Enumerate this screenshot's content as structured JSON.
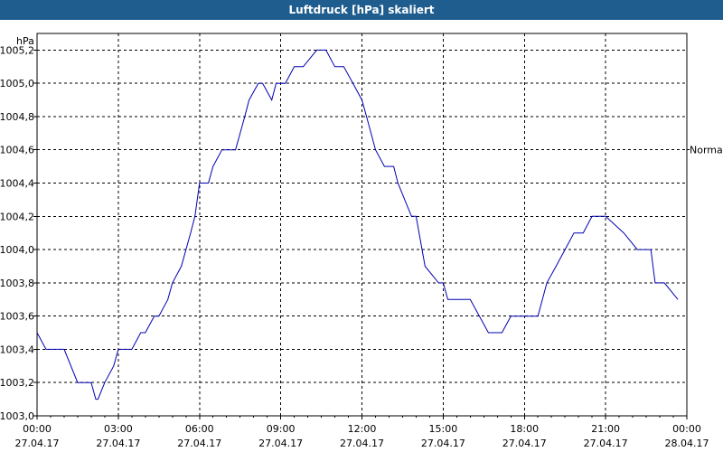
{
  "window": {
    "title": "Luftdruck [hPa] skaliert"
  },
  "chart_data": {
    "type": "line",
    "title": "Luftdruck [hPa] skaliert",
    "ylabel": "hPa",
    "ylim": [
      1003.0,
      1005.3
    ],
    "yticks": [
      "1003,0",
      "1003,2",
      "1003,4",
      "1003,6",
      "1003,8",
      "1004,0",
      "1004,2",
      "1004,4",
      "1004,6",
      "1004,8",
      "1005,0",
      "1005,2"
    ],
    "ytick_values": [
      1003.0,
      1003.2,
      1003.4,
      1003.6,
      1003.8,
      1004.0,
      1004.2,
      1004.4,
      1004.6,
      1004.8,
      1005.0,
      1005.2
    ],
    "xticks": [
      {
        "time": "00:00",
        "date": "27.04.17"
      },
      {
        "time": "03:00",
        "date": "27.04.17"
      },
      {
        "time": "06:00",
        "date": "27.04.17"
      },
      {
        "time": "09:00",
        "date": "27.04.17"
      },
      {
        "time": "12:00",
        "date": "27.04.17"
      },
      {
        "time": "15:00",
        "date": "27.04.17"
      },
      {
        "time": "18:00",
        "date": "27.04.17"
      },
      {
        "time": "21:00",
        "date": "27.04.17"
      },
      {
        "time": "00:00",
        "date": "28.04.17"
      }
    ],
    "xlim_hours": [
      0,
      24
    ],
    "reference_line": {
      "label": "Normal",
      "value": 1004.6
    },
    "grid": true,
    "series": [
      {
        "color": "#0000b0",
        "hours": [
          0,
          0.33,
          0.5,
          1,
          1.5,
          2,
          2.17,
          2.25,
          2.5,
          2.83,
          3,
          3.5,
          3.83,
          4,
          4.33,
          4.5,
          4.83,
          5,
          5.33,
          5.5,
          5.67,
          5.83,
          6,
          6.33,
          6.5,
          6.83,
          7.33,
          7.67,
          7.83,
          8.17,
          8.33,
          8.67,
          8.83,
          9.17,
          9.5,
          9.83,
          10.33,
          10.67,
          11,
          11.33,
          11.67,
          12,
          12.17,
          12.5,
          12.83,
          13.17,
          13.33,
          13.83,
          14,
          14.33,
          14.83,
          15,
          15.17,
          15.67,
          16,
          16.67,
          17.17,
          17.5,
          17.83,
          18.5,
          18.83,
          19.17,
          19.5,
          19.83,
          20.17,
          20.5,
          20.67,
          21,
          21.67,
          22.17,
          22.67,
          22.83,
          23.17,
          23.67
        ],
        "values": [
          1003.5,
          1003.4,
          1003.4,
          1003.4,
          1003.2,
          1003.2,
          1003.1,
          1003.1,
          1003.2,
          1003.3,
          1003.4,
          1003.4,
          1003.5,
          1003.5,
          1003.6,
          1003.6,
          1003.7,
          1003.8,
          1003.9,
          1004.0,
          1004.1,
          1004.2,
          1004.4,
          1004.4,
          1004.5,
          1004.6,
          1004.6,
          1004.8,
          1004.9,
          1005.0,
          1005.0,
          1004.9,
          1005.0,
          1005.0,
          1005.1,
          1005.1,
          1005.2,
          1005.2,
          1005.1,
          1005.1,
          1005.0,
          1004.9,
          1004.8,
          1004.6,
          1004.5,
          1004.5,
          1004.4,
          1004.2,
          1004.2,
          1003.9,
          1003.8,
          1003.8,
          1003.7,
          1003.7,
          1003.7,
          1003.5,
          1003.5,
          1003.6,
          1003.6,
          1003.6,
          1003.8,
          1003.9,
          1004.0,
          1004.1,
          1004.1,
          1004.2,
          1004.2,
          1004.2,
          1004.1,
          1004.0,
          1004.0,
          1003.8,
          1003.8,
          1003.7
        ]
      }
    ]
  }
}
